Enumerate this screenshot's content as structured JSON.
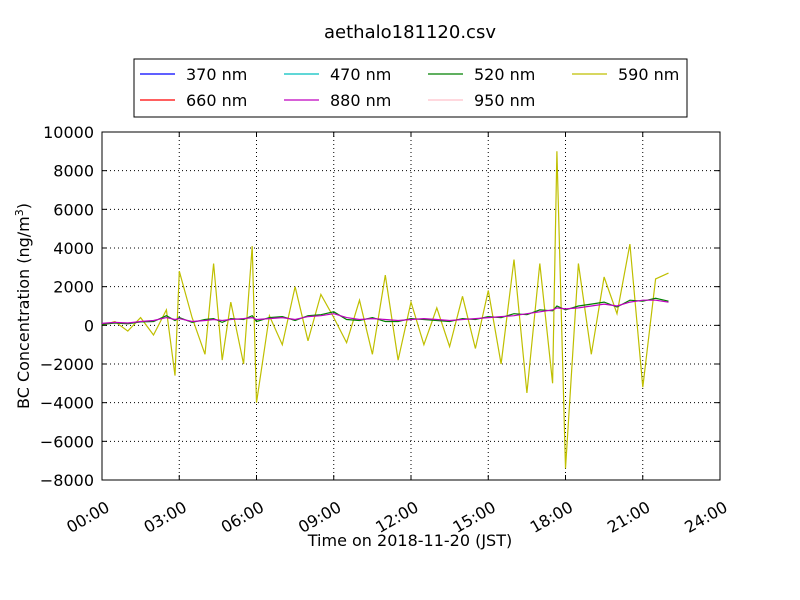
{
  "chart_data": {
    "type": "line",
    "title": "aethalo181120.csv",
    "xlabel": "Time on 2018-11-20 (JST)",
    "ylabel": "BC Concentration (ng/m",
    "ylabel_sup": "3",
    "ylabel_end": ")",
    "xlim": [
      "00:00",
      "24:00"
    ],
    "ylim": [
      -8000,
      10000
    ],
    "x_ticks": [
      "00:00",
      "03:00",
      "06:00",
      "09:00",
      "12:00",
      "15:00",
      "18:00",
      "21:00",
      "24:00"
    ],
    "y_ticks": [
      "10000",
      "8000",
      "6000",
      "4000",
      "2000",
      "0",
      "−2000",
      "−4000",
      "−6000",
      "−8000"
    ],
    "grid": true,
    "legend_position": "top",
    "series": [
      {
        "name": "370 nm",
        "color": "#0000ff"
      },
      {
        "name": "470 nm",
        "color": "#00bfbf"
      },
      {
        "name": "520 nm",
        "color": "#008000"
      },
      {
        "name": "590 nm",
        "color": "#bfbf00"
      },
      {
        "name": "660 nm",
        "color": "#ff0000"
      },
      {
        "name": "880 nm",
        "color": "#bf00bf"
      },
      {
        "name": "950 nm",
        "color": "#ffc0cb"
      }
    ],
    "x": [
      "00:00",
      "00:30",
      "01:00",
      "01:30",
      "02:00",
      "02:30",
      "02:50",
      "03:00",
      "03:30",
      "04:00",
      "04:20",
      "04:40",
      "05:00",
      "05:30",
      "05:50",
      "06:00",
      "06:30",
      "07:00",
      "07:30",
      "08:00",
      "08:30",
      "09:00",
      "09:30",
      "10:00",
      "10:30",
      "11:00",
      "11:30",
      "12:00",
      "12:30",
      "13:00",
      "13:30",
      "14:00",
      "14:30",
      "15:00",
      "15:30",
      "16:00",
      "16:30",
      "17:00",
      "17:30",
      "17:40",
      "18:00",
      "18:30",
      "19:00",
      "19:30",
      "20:00",
      "20:30",
      "21:00",
      "21:30",
      "22:00"
    ],
    "series_values": {
      "590 nm": [
        0,
        200,
        -300,
        400,
        -500,
        800,
        -2600,
        2800,
        400,
        -1500,
        3200,
        -1800,
        1200,
        -2000,
        4100,
        -4000,
        500,
        -1000,
        2000,
        -800,
        1600,
        400,
        -900,
        1300,
        -1500,
        2600,
        -1800,
        1200,
        -1000,
        900,
        -1100,
        1500,
        -1200,
        1800,
        -2000,
        3400,
        -3500,
        3200,
        -3000,
        9000,
        -7400,
        3200,
        -1500,
        2500,
        600,
        4200,
        -3200,
        2400,
        2700
      ],
      "880 nm": [
        100,
        150,
        120,
        200,
        250,
        400,
        300,
        350,
        200,
        250,
        300,
        250,
        300,
        350,
        400,
        300,
        350,
        400,
        300,
        450,
        500,
        600,
        400,
        300,
        350,
        300,
        250,
        300,
        350,
        300,
        250,
        300,
        350,
        400,
        450,
        500,
        600,
        700,
        800,
        900,
        850,
        900,
        1000,
        1100,
        1000,
        1200,
        1300,
        1300,
        1200
      ],
      "520 nm": [
        50,
        120,
        80,
        180,
        200,
        500,
        250,
        400,
        150,
        300,
        350,
        150,
        350,
        300,
        500,
        200,
        400,
        450,
        250,
        500,
        550,
        700,
        300,
        250,
        400,
        200,
        200,
        350,
        300,
        250,
        200,
        350,
        300,
        450,
        400,
        600,
        550,
        800,
        750,
        1000,
        800,
        1000,
        1100,
        1200,
        950,
        1300,
        1250,
        1400,
        1250
      ]
    }
  }
}
